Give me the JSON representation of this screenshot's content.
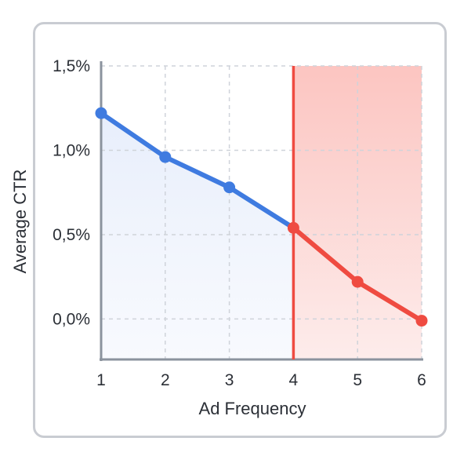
{
  "chart_data": {
    "type": "line",
    "xlabel": "Ad Frequency",
    "ylabel": "Average CTR",
    "x_ticks": [
      "1",
      "2",
      "3",
      "4",
      "5",
      "6"
    ],
    "y_ticks": [
      "0,0%",
      "0,5%",
      "1,0%",
      "1,5%"
    ],
    "y_tick_values": [
      0.0,
      0.5,
      1.0,
      1.5
    ],
    "xlim": [
      1,
      6
    ],
    "ylim": [
      -0.24,
      1.5
    ],
    "grid": true,
    "threshold_x": 4,
    "series": [
      {
        "x": [
          1,
          2,
          3,
          4,
          5,
          6
        ],
        "y": [
          1.22,
          0.96,
          0.78,
          0.54,
          0.22,
          -0.01
        ],
        "colors": [
          "#3f7be0",
          "#3f7be0",
          "#3f7be0",
          "#ef4b41",
          "#ef4b41",
          "#ef4b41"
        ]
      }
    ],
    "colors": {
      "normal": "#3f7be0",
      "threshold": "#ef4b41",
      "shade_normal": "#e8eefb",
      "shade_threshold": "#fcc9c6"
    }
  }
}
